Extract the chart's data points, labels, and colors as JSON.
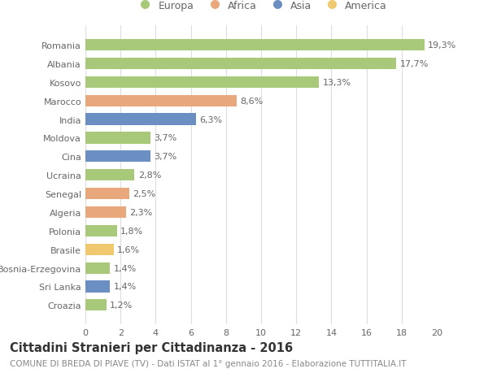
{
  "categories": [
    "Romania",
    "Albania",
    "Kosovo",
    "Marocco",
    "India",
    "Moldova",
    "Cina",
    "Ucraina",
    "Senegal",
    "Algeria",
    "Polonia",
    "Brasile",
    "Bosnia-Erzegovina",
    "Sri Lanka",
    "Croazia"
  ],
  "values": [
    19.3,
    17.7,
    13.3,
    8.6,
    6.3,
    3.7,
    3.7,
    2.8,
    2.5,
    2.3,
    1.8,
    1.6,
    1.4,
    1.4,
    1.2
  ],
  "labels": [
    "19,3%",
    "17,7%",
    "13,3%",
    "8,6%",
    "6,3%",
    "3,7%",
    "3,7%",
    "2,8%",
    "2,5%",
    "2,3%",
    "1,8%",
    "1,6%",
    "1,4%",
    "1,4%",
    "1,2%"
  ],
  "continents": [
    "Europa",
    "Europa",
    "Europa",
    "Africa",
    "Asia",
    "Europa",
    "Asia",
    "Europa",
    "Africa",
    "Africa",
    "Europa",
    "America",
    "Europa",
    "Asia",
    "Europa"
  ],
  "colors": {
    "Europa": "#a8c87a",
    "Africa": "#e8a87c",
    "Asia": "#6b8fc2",
    "America": "#f0c96e"
  },
  "title": "Cittadini Stranieri per Cittadinanza - 2016",
  "subtitle": "COMUNE DI BREDA DI PIAVE (TV) - Dati ISTAT al 1° gennaio 2016 - Elaborazione TUTTITALIA.IT",
  "xlim": [
    0,
    20
  ],
  "xticks": [
    0,
    2,
    4,
    6,
    8,
    10,
    12,
    14,
    16,
    18,
    20
  ],
  "background_color": "#ffffff",
  "grid_color": "#dddddd",
  "bar_height": 0.62,
  "label_fontsize": 8,
  "tick_fontsize": 8,
  "title_fontsize": 10.5,
  "subtitle_fontsize": 7.5,
  "legend_order": [
    "Europa",
    "Africa",
    "Asia",
    "America"
  ]
}
